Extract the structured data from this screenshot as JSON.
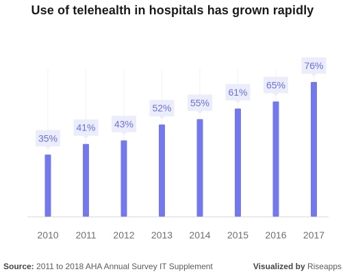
{
  "title": "Use of telehealth in hospitals has grown rapidly",
  "footer": {
    "source_label": "Source:",
    "source_text": "2011 to 2018 AHA Annual Survey IT Supplement",
    "visualized_label": "Visualized by",
    "visualized_text": "Riseapps"
  },
  "colors": {
    "bar": "#7378ea",
    "label_box": "#ebedfb",
    "label_text": "#6a70e2",
    "axis_text": "#6e6e6e",
    "gridline": "#f1f1f1",
    "baseline": "#d8d8d8"
  },
  "chart_data": {
    "type": "bar",
    "categories": [
      "2010",
      "2011",
      "2012",
      "2013",
      "2014",
      "2015",
      "2016",
      "2017"
    ],
    "values": [
      35,
      41,
      43,
      52,
      55,
      61,
      65,
      76
    ],
    "data_labels": [
      "35%",
      "41%",
      "43%",
      "52%",
      "55%",
      "61%",
      "65%",
      "76%"
    ],
    "ylim": [
      0,
      85
    ],
    "xlabel": "",
    "ylabel": "",
    "grid": "vertical",
    "legend": "none"
  }
}
